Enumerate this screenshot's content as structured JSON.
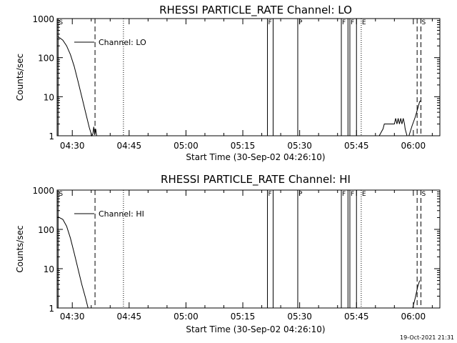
{
  "chart_data": [
    {
      "type": "line",
      "title": "RHESSI PARTICLE_RATE Channel: LO",
      "xlabel": "Start Time (30-Sep-02 04:26:10)",
      "ylabel": "Counts/sec",
      "y_scale": "log",
      "ylim": [
        1,
        1000
      ],
      "xlim": [
        "04:26",
        "06:07"
      ],
      "y_ticks": [
        "1",
        "10",
        "100",
        "1000"
      ],
      "x_ticks": [
        "04:30",
        "04:45",
        "05:00",
        "05:15",
        "05:30",
        "05:45",
        "06:00"
      ],
      "legend": {
        "label": "Channel: LO",
        "placement": "top-left"
      },
      "series": [
        {
          "name": "Channel: LO",
          "segments": [
            [
              [
                "04:26:10",
                350
              ],
              [
                "04:27:30",
                280
              ],
              [
                "04:28:30",
                200
              ],
              [
                "04:29:30",
                120
              ],
              [
                "04:30:30",
                60
              ],
              [
                "04:31:30",
                25
              ],
              [
                "04:32:30",
                10
              ],
              [
                "04:33:30",
                4
              ],
              [
                "04:34:30",
                1.6
              ],
              [
                "04:35:10",
                1
              ],
              [
                "04:35:25",
                1.1
              ],
              [
                "04:35:40",
                1.7
              ],
              [
                "04:35:55",
                1.05
              ],
              [
                "04:36:10",
                1.5
              ],
              [
                "04:36:25",
                1
              ]
            ],
            [
              [
                "05:51:00",
                1
              ],
              [
                "05:52:00",
                1.5
              ],
              [
                "05:52:20",
                2
              ],
              [
                "05:55:00",
                2
              ],
              [
                "05:55:20",
                2.8
              ],
              [
                "05:55:40",
                2
              ],
              [
                "05:56:00",
                2.8
              ],
              [
                "05:56:20",
                2
              ],
              [
                "05:56:40",
                2.8
              ],
              [
                "05:57:00",
                2
              ],
              [
                "05:57:20",
                2.8
              ],
              [
                "05:57:40",
                2
              ],
              [
                "05:57:50",
                1.5
              ],
              [
                "05:58:20",
                1
              ]
            ],
            [
              [
                "05:58:50",
                1
              ],
              [
                "05:59:40",
                1.8
              ],
              [
                "06:00:30",
                3
              ],
              [
                "06:01:10",
                5
              ],
              [
                "06:01:40",
                7.5
              ],
              [
                "06:02:00",
                8
              ]
            ]
          ]
        }
      ],
      "markers": [
        {
          "label": "S",
          "time": "04:26:15",
          "style": "solid"
        },
        {
          "label": "",
          "time": "04:36:00",
          "style": "dashed"
        },
        {
          "label": "",
          "time": "04:43:30",
          "style": "dotted"
        },
        {
          "label": "F",
          "time": "05:21:30",
          "style": "solid"
        },
        {
          "label": "",
          "time": "05:23:00",
          "style": "solid"
        },
        {
          "label": "P",
          "time": "05:29:30",
          "style": "solid"
        },
        {
          "label": "F",
          "time": "05:41:00",
          "style": "solid"
        },
        {
          "label": "",
          "time": "05:42:45",
          "style": "solid"
        },
        {
          "label": "F",
          "time": "05:43:15",
          "style": "solid"
        },
        {
          "label": "",
          "time": "05:45:00",
          "style": "solid"
        },
        {
          "label": "E",
          "time": "05:46:15",
          "style": "dotted"
        },
        {
          "label": "",
          "time": "06:01:00",
          "style": "dashed"
        },
        {
          "label": "S",
          "time": "06:02:00",
          "style": "dashed"
        }
      ]
    },
    {
      "type": "line",
      "title": "RHESSI PARTICLE_RATE Channel: HI",
      "xlabel": "Start Time (30-Sep-02 04:26:10)",
      "ylabel": "Counts/sec",
      "y_scale": "log",
      "ylim": [
        1,
        1000
      ],
      "xlim": [
        "04:26",
        "06:07"
      ],
      "y_ticks": [
        "1",
        "10",
        "100",
        "1000"
      ],
      "x_ticks": [
        "04:30",
        "04:45",
        "05:00",
        "05:15",
        "05:30",
        "05:45",
        "06:00"
      ],
      "legend": {
        "label": "Channel: HI",
        "placement": "top-left"
      },
      "series": [
        {
          "name": "Channel: HI",
          "segments": [
            [
              [
                "04:26:10",
                210
              ],
              [
                "04:27:30",
                180
              ],
              [
                "04:28:30",
                120
              ],
              [
                "04:29:30",
                60
              ],
              [
                "04:30:30",
                25
              ],
              [
                "04:31:30",
                10
              ],
              [
                "04:32:30",
                4
              ],
              [
                "04:33:30",
                1.8
              ],
              [
                "04:34:10",
                1
              ]
            ],
            [
              [
                "05:59:50",
                1
              ],
              [
                "06:00:30",
                1.8
              ],
              [
                "06:01:10",
                3.5
              ],
              [
                "06:01:40",
                5
              ]
            ]
          ]
        }
      ],
      "markers": [
        {
          "label": "S",
          "time": "04:26:15",
          "style": "solid"
        },
        {
          "label": "",
          "time": "04:36:00",
          "style": "dashed"
        },
        {
          "label": "",
          "time": "04:43:30",
          "style": "dotted"
        },
        {
          "label": "F",
          "time": "05:21:30",
          "style": "solid"
        },
        {
          "label": "",
          "time": "05:23:00",
          "style": "solid"
        },
        {
          "label": "P",
          "time": "05:29:30",
          "style": "solid"
        },
        {
          "label": "F",
          "time": "05:41:00",
          "style": "solid"
        },
        {
          "label": "",
          "time": "05:42:45",
          "style": "solid"
        },
        {
          "label": "F",
          "time": "05:43:15",
          "style": "solid"
        },
        {
          "label": "",
          "time": "05:45:00",
          "style": "solid"
        },
        {
          "label": "E",
          "time": "05:46:15",
          "style": "dotted"
        },
        {
          "label": "",
          "time": "06:01:00",
          "style": "dashed"
        },
        {
          "label": "S",
          "time": "06:02:00",
          "style": "dashed"
        }
      ]
    }
  ],
  "footer": {
    "timestamp": "19-Oct-2021 21:31"
  }
}
